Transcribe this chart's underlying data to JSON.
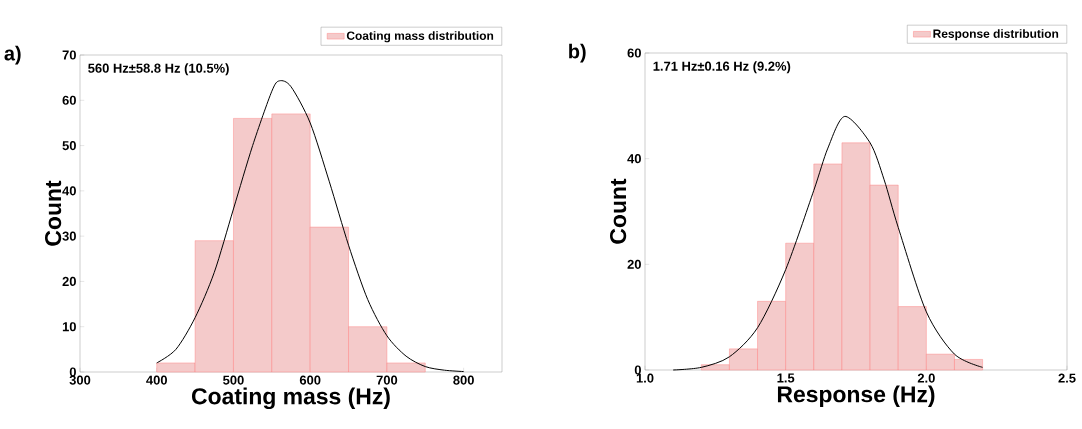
{
  "chart_data": [
    {
      "type": "histogram",
      "xlabel": "Coating mass (Hz)",
      "ylabel": "Count",
      "annotations": [
        "a)",
        "560 Hz±58.8 Hz (10.5%)"
      ],
      "bins": [
        400,
        450,
        500,
        550,
        600,
        650,
        700,
        750
      ],
      "series": [
        {
          "name": "Coating mass distribution",
          "color": "#f4caca",
          "values": [
            2,
            29,
            56,
            57,
            32,
            10,
            2
          ]
        },
        {
          "type": "line",
          "color": "#000000",
          "x": [
            400,
            425,
            450,
            475,
            500,
            525,
            550,
            560,
            575,
            600,
            625,
            650,
            675,
            700,
            725,
            750,
            775,
            800
          ],
          "values": [
            2,
            5,
            12,
            22,
            36,
            50,
            62,
            64.3,
            63,
            55,
            42,
            28,
            16,
            8,
            3.5,
            1.2,
            0.4,
            0.1
          ]
        }
      ],
      "xlim": [
        300,
        850
      ],
      "xticks": [
        300,
        400,
        500,
        600,
        700,
        800
      ],
      "ylim": [
        0,
        70
      ],
      "yticks": [
        0,
        10,
        20,
        30,
        40,
        50,
        60,
        70
      ],
      "legend": "top right"
    },
    {
      "type": "histogram",
      "xlabel": "Response (Hz)",
      "ylabel": "Count",
      "annotations": [
        "b)",
        "1.71 Hz±0.16 Hz (9.2%)"
      ],
      "bins": [
        1.2,
        1.3,
        1.4,
        1.5,
        1.6,
        1.7,
        1.8,
        1.9,
        2.0,
        2.1,
        2.2
      ],
      "series": [
        {
          "name": "Response distribution",
          "color": "#f4caca",
          "values": [
            1,
            4,
            13,
            24,
            39,
            43,
            35,
            12,
            3,
            2
          ]
        },
        {
          "type": "line",
          "color": "#000000",
          "x": [
            1.1,
            1.2,
            1.3,
            1.4,
            1.5,
            1.6,
            1.65,
            1.71,
            1.8,
            1.85,
            1.9,
            2.0,
            2.1,
            2.2
          ],
          "values": [
            0,
            0.5,
            2.5,
            8,
            19,
            34,
            42,
            48,
            43,
            36,
            27,
            11,
            3,
            0.5
          ]
        }
      ],
      "xlim": [
        1.0,
        2.5
      ],
      "xticks": [
        {
          "value": 1.0,
          "label": "1.0"
        },
        {
          "value": 1.5,
          "label": "1.5"
        },
        {
          "value": 2.0,
          "label": "2.0"
        },
        {
          "value": 2.5,
          "label": "2.5"
        }
      ],
      "ylim": [
        0,
        60
      ],
      "yticks": [
        0,
        20,
        40,
        60
      ],
      "legend": "top right"
    }
  ]
}
